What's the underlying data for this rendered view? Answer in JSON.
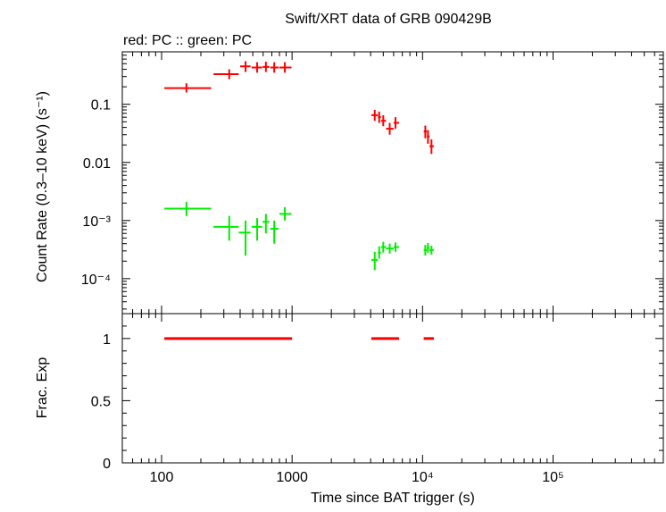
{
  "title": "Swift/XRT data of GRB 090429B",
  "legend_text": "red: PC  :: green: PC",
  "colors": {
    "red": "#ff0000",
    "green": "#00ee00",
    "axis": "#000000"
  },
  "chart_data": [
    {
      "type": "scatter",
      "panel": "top",
      "title": "Swift/XRT data of GRB 090429B",
      "ylabel": "Count Rate (0.3–10 keV) (s⁻¹)",
      "xscale": "log",
      "yscale": "log",
      "xlim": [
        50,
        700000
      ],
      "ylim": [
        2.5e-05,
        0.8
      ],
      "x_ticks": [
        {
          "value": 100,
          "label": "100"
        },
        {
          "value": 1000,
          "label": "1000"
        },
        {
          "value": 10000,
          "label": "10⁴"
        },
        {
          "value": 100000,
          "label": "10⁵"
        }
      ],
      "y_ticks": [
        {
          "value": 0.0001,
          "label": "10⁻⁴"
        },
        {
          "value": 0.001,
          "label": "10⁻³"
        },
        {
          "value": 0.01,
          "label": "0.01"
        },
        {
          "value": 0.1,
          "label": "0.1"
        }
      ],
      "series": [
        {
          "name": "red: PC",
          "color": "#ff0000",
          "points": [
            {
              "x": 155,
              "xlo": 105,
              "xhi": 240,
              "y": 0.19,
              "ylo": 0.16,
              "yhi": 0.23
            },
            {
              "x": 330,
              "xlo": 250,
              "xhi": 390,
              "y": 0.33,
              "ylo": 0.27,
              "yhi": 0.4
            },
            {
              "x": 440,
              "xlo": 400,
              "xhi": 480,
              "y": 0.45,
              "ylo": 0.36,
              "yhi": 0.55
            },
            {
              "x": 540,
              "xlo": 490,
              "xhi": 590,
              "y": 0.43,
              "ylo": 0.35,
              "yhi": 0.53
            },
            {
              "x": 630,
              "xlo": 595,
              "xhi": 670,
              "y": 0.44,
              "ylo": 0.36,
              "yhi": 0.54
            },
            {
              "x": 730,
              "xlo": 680,
              "xhi": 790,
              "y": 0.43,
              "ylo": 0.35,
              "yhi": 0.53
            },
            {
              "x": 880,
              "xlo": 800,
              "xhi": 990,
              "y": 0.43,
              "ylo": 0.35,
              "yhi": 0.53
            },
            {
              "x": 4300,
              "xlo": 4050,
              "xhi": 4550,
              "y": 0.065,
              "ylo": 0.052,
              "yhi": 0.08
            },
            {
              "x": 4650,
              "xlo": 4550,
              "xhi": 4800,
              "y": 0.06,
              "ylo": 0.048,
              "yhi": 0.075
            },
            {
              "x": 5000,
              "xlo": 4800,
              "xhi": 5250,
              "y": 0.052,
              "ylo": 0.042,
              "yhi": 0.065
            },
            {
              "x": 5600,
              "xlo": 5250,
              "xhi": 6000,
              "y": 0.038,
              "ylo": 0.03,
              "yhi": 0.048
            },
            {
              "x": 6200,
              "xlo": 6000,
              "xhi": 6600,
              "y": 0.048,
              "ylo": 0.038,
              "yhi": 0.06
            },
            {
              "x": 10500,
              "xlo": 10200,
              "xhi": 10800,
              "y": 0.034,
              "ylo": 0.026,
              "yhi": 0.043
            },
            {
              "x": 11000,
              "xlo": 10800,
              "xhi": 11300,
              "y": 0.028,
              "ylo": 0.021,
              "yhi": 0.036
            },
            {
              "x": 11700,
              "xlo": 11300,
              "xhi": 12200,
              "y": 0.019,
              "ylo": 0.014,
              "yhi": 0.025
            }
          ]
        },
        {
          "name": "green: PC",
          "color": "#00ee00",
          "points": [
            {
              "x": 155,
              "xlo": 105,
              "xhi": 240,
              "y": 0.0016,
              "ylo": 0.0012,
              "yhi": 0.0021
            },
            {
              "x": 330,
              "xlo": 250,
              "xhi": 390,
              "y": 0.00078,
              "ylo": 0.00045,
              "yhi": 0.0012
            },
            {
              "x": 440,
              "xlo": 390,
              "xhi": 480,
              "y": 0.00062,
              "ylo": 0.00025,
              "yhi": 0.001
            },
            {
              "x": 540,
              "xlo": 490,
              "xhi": 590,
              "y": 0.00078,
              "ylo": 0.00045,
              "yhi": 0.0011
            },
            {
              "x": 630,
              "xlo": 595,
              "xhi": 670,
              "y": 0.00095,
              "ylo": 0.0006,
              "yhi": 0.0013
            },
            {
              "x": 730,
              "xlo": 680,
              "xhi": 790,
              "y": 0.00072,
              "ylo": 0.0004,
              "yhi": 0.001
            },
            {
              "x": 880,
              "xlo": 800,
              "xhi": 990,
              "y": 0.0013,
              "ylo": 0.001,
              "yhi": 0.0017
            },
            {
              "x": 4300,
              "xlo": 4050,
              "xhi": 4550,
              "y": 0.00021,
              "ylo": 0.00014,
              "yhi": 0.00029
            },
            {
              "x": 4650,
              "xlo": 4550,
              "xhi": 4800,
              "y": 0.00028,
              "ylo": 0.00022,
              "yhi": 0.00036
            },
            {
              "x": 5000,
              "xlo": 4800,
              "xhi": 5250,
              "y": 0.00035,
              "ylo": 0.00028,
              "yhi": 0.00043
            },
            {
              "x": 5600,
              "xlo": 5250,
              "xhi": 6000,
              "y": 0.00033,
              "ylo": 0.00027,
              "yhi": 0.0004
            },
            {
              "x": 6200,
              "xlo": 6000,
              "xhi": 6600,
              "y": 0.00035,
              "ylo": 0.00029,
              "yhi": 0.00042
            },
            {
              "x": 10500,
              "xlo": 10200,
              "xhi": 10800,
              "y": 0.00031,
              "ylo": 0.00025,
              "yhi": 0.00038
            },
            {
              "x": 11000,
              "xlo": 10800,
              "xhi": 11300,
              "y": 0.00034,
              "ylo": 0.00028,
              "yhi": 0.00041
            },
            {
              "x": 11700,
              "xlo": 11300,
              "xhi": 12200,
              "y": 0.00031,
              "ylo": 0.00026,
              "yhi": 0.00037
            }
          ]
        }
      ]
    },
    {
      "type": "line",
      "panel": "bottom",
      "xlabel": "Time since BAT trigger (s)",
      "ylabel": "Frac. Exp",
      "xscale": "log",
      "yscale": "linear",
      "xlim": [
        50,
        700000
      ],
      "ylim": [
        0,
        1.2
      ],
      "y_ticks": [
        {
          "value": 0,
          "label": "0"
        },
        {
          "value": 0.5,
          "label": "0.5"
        },
        {
          "value": 1,
          "label": "1"
        }
      ],
      "series": [
        {
          "color": "#ff0000",
          "segments": [
            {
              "x0": 105,
              "x1": 1000,
              "y": 1
            },
            {
              "x0": 4050,
              "x1": 6600,
              "y": 1
            },
            {
              "x0": 10200,
              "x1": 12200,
              "y": 1
            }
          ]
        }
      ]
    }
  ]
}
